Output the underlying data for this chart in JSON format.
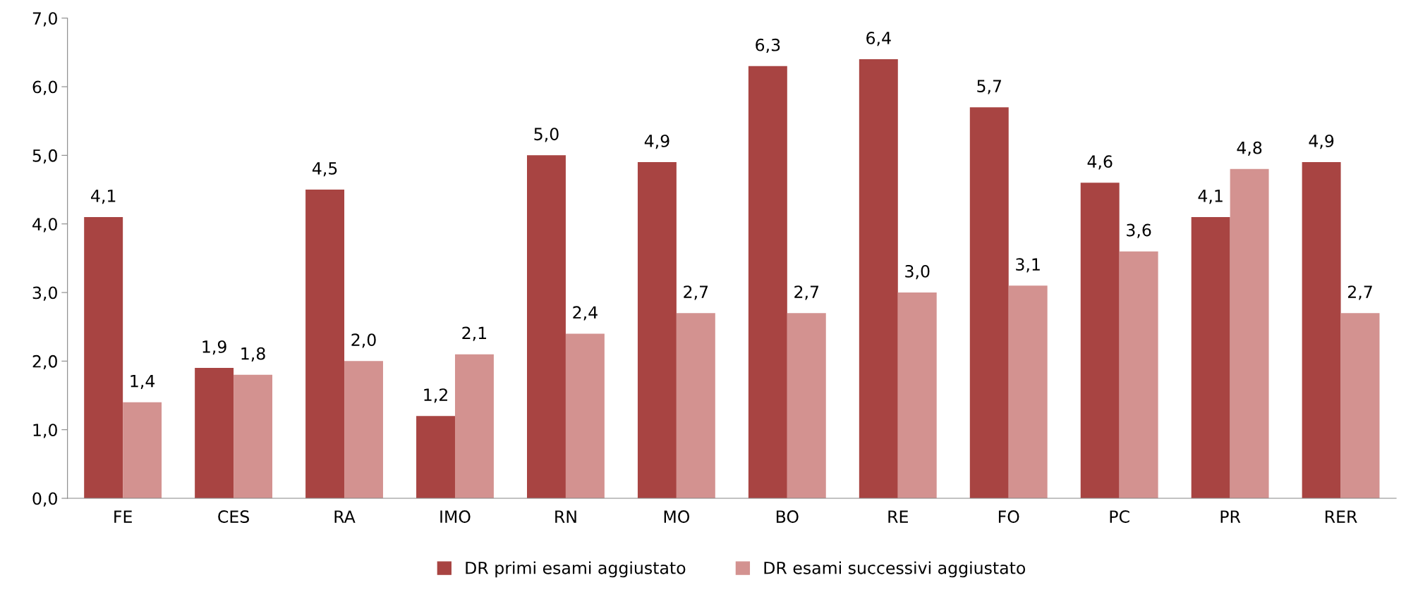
{
  "chart_data": {
    "type": "bar",
    "categories": [
      "FE",
      "CES",
      "RA",
      "IMO",
      "RN",
      "MO",
      "BO",
      "RE",
      "FO",
      "PC",
      "PR",
      "RER"
    ],
    "series": [
      {
        "name": "DR primi esami aggiustato",
        "color": "#a84442",
        "values": [
          4.1,
          1.9,
          4.5,
          1.2,
          5.0,
          4.9,
          6.3,
          6.4,
          5.7,
          4.6,
          4.1,
          4.9
        ],
        "value_labels": [
          "4,1",
          "1,9",
          "4,5",
          "1,2",
          "5,0",
          "4,9",
          "6,3",
          "6,4",
          "5,7",
          "4,6",
          "4,1",
          "4,9"
        ]
      },
      {
        "name": "DR esami successivi aggiustato",
        "color": "#d39290",
        "values": [
          1.4,
          1.8,
          2.0,
          2.1,
          2.4,
          2.7,
          2.7,
          3.0,
          3.1,
          3.6,
          4.8,
          2.7
        ],
        "value_labels": [
          "1,4",
          "1,8",
          "2,0",
          "2,1",
          "2,4",
          "2,7",
          "2,7",
          "3,0",
          "3,1",
          "3,6",
          "4,8",
          "2,7"
        ]
      }
    ],
    "ylim": [
      0,
      7
    ],
    "yticks": [
      {
        "value": 0,
        "label": "0,0"
      },
      {
        "value": 1,
        "label": "1,0"
      },
      {
        "value": 2,
        "label": "2,0"
      },
      {
        "value": 3,
        "label": "3,0"
      },
      {
        "value": 4,
        "label": "4,0"
      },
      {
        "value": 5,
        "label": "5,0"
      },
      {
        "value": 6,
        "label": "6,0"
      },
      {
        "value": 7,
        "label": "7,0"
      }
    ],
    "grid": false,
    "legend": "bottom"
  }
}
